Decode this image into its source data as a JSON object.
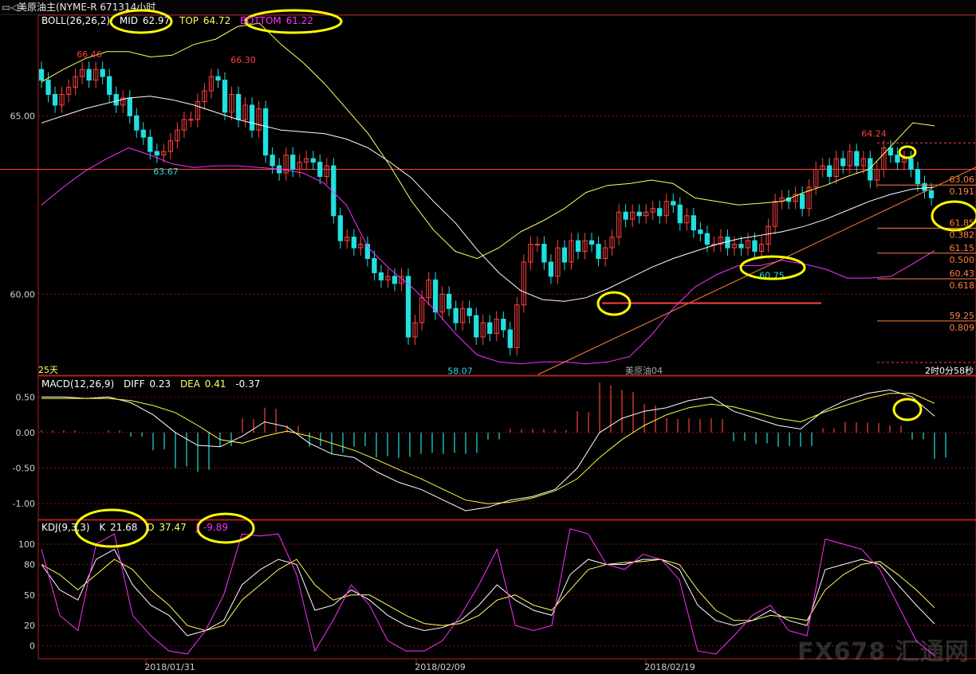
{
  "window": {
    "button": "▭◁",
    "title": "美原油主(NYME-R 671314小时"
  },
  "colors": {
    "up": "#ff4040",
    "down": "#20e0e0",
    "mid": "#ffffff",
    "top": "#ffff60",
    "bottom": "#ff30ff",
    "grid": "#8a1010",
    "panel_border": "#b02020",
    "trend": "#ff8040",
    "diff": "#ffffff",
    "dea": "#ffff40",
    "k": "#ffffff",
    "d": "#ffff60",
    "j": "#ff30ff",
    "circle": "#ffff00"
  },
  "boll": {
    "name": "BOLL(26,26,2)",
    "mid_label": "MID",
    "mid": "62.97",
    "top_label": "TOP",
    "top": "64.72",
    "bottom_label": "BOTTOM",
    "bottom": "61.22"
  },
  "macd": {
    "name": "MACD(12,26,9)",
    "diff_label": "DIFF",
    "diff": "0.23",
    "dea_label": "DEA",
    "dea": "0.41",
    "macd": "-0.37"
  },
  "kdj": {
    "name": "KDJ(9,3,3)",
    "k_label": "K",
    "k": "21.68",
    "d_label": "D",
    "d": "37.47",
    "j_label": "J",
    "j": "-9.89"
  },
  "main_annotations": {
    "period": "25天",
    "contract": "美原油04",
    "countdown": "2时0分58秒"
  },
  "price_marks": [
    "66.46",
    "66.30",
    "63.67",
    "58.07",
    "60.75",
    "64.24"
  ],
  "fib_levels": [
    {
      "price": "63.06",
      "ratio": "0.191"
    },
    {
      "price": "61.85",
      "ratio": "0.382"
    },
    {
      "price": "61.15",
      "ratio": "0.500"
    },
    {
      "price": "60.43",
      "ratio": "0.618"
    },
    {
      "price": "59.25",
      "ratio": "0.809"
    }
  ],
  "watermark": "FX678 汇通网",
  "chart_data": [
    {
      "type": "candlestick",
      "title": "美原油主(NYME-R 671314小时",
      "x_ticks": [
        "2018/01/31",
        "2018/02/09",
        "2018/02/19"
      ],
      "y_ticks": [
        65.0,
        60.0
      ],
      "ylim": [
        57.75,
        67.8
      ],
      "grid": true,
      "horizontal_line": 63.5,
      "support_line": 59.75,
      "close": [
        66.0,
        65.6,
        65.3,
        65.6,
        65.8,
        66.1,
        66.3,
        66.0,
        66.3,
        66.1,
        65.6,
        65.3,
        65.5,
        65.0,
        64.6,
        64.4,
        64.0,
        63.9,
        64.0,
        64.3,
        64.6,
        64.9,
        64.9,
        65.4,
        65.7,
        66.1,
        66.0,
        65.1,
        65.6,
        64.9,
        65.3,
        64.6,
        65.2,
        63.9,
        63.6,
        63.4,
        63.9,
        63.5,
        63.7,
        63.8,
        63.7,
        63.3,
        63.6,
        62.2,
        61.5,
        61.6,
        61.3,
        61.4,
        61.0,
        60.6,
        60.4,
        60.5,
        60.3,
        60.5,
        58.8,
        59.2,
        59.9,
        60.4,
        59.5,
        60.0,
        59.6,
        59.2,
        59.6,
        59.4,
        58.8,
        59.2,
        58.9,
        59.3,
        59.0,
        58.5,
        59.7,
        60.9,
        61.4,
        61.4,
        60.9,
        60.5,
        61.3,
        60.9,
        61.5,
        61.2,
        61.5,
        61.4,
        61.0,
        61.3,
        61.6,
        62.3,
        62.1,
        62.3,
        62.2,
        62.3,
        62.4,
        62.2,
        62.6,
        62.5,
        62.0,
        62.2,
        61.8,
        61.7,
        61.4,
        61.4,
        61.6,
        61.3,
        61.4,
        61.3,
        61.5,
        61.2,
        61.4,
        61.9,
        62.6,
        62.7,
        62.6,
        62.8,
        62.4,
        63.0,
        63.5,
        63.6,
        63.3,
        63.8,
        63.6,
        64.0,
        63.6,
        63.8,
        63.2,
        63.5,
        64.1,
        63.9,
        63.7,
        63.8,
        63.5,
        63.1,
        62.9,
        62.7
      ],
      "series": [
        {
          "name": "MID",
          "values": [
            64.8,
            65.0,
            65.2,
            65.35,
            65.5,
            65.55,
            65.45,
            65.3,
            65.1,
            64.9,
            64.75,
            64.6,
            64.55,
            64.5,
            64.35,
            64.1,
            63.7,
            63.25,
            62.6,
            62.0,
            61.25,
            60.6,
            60.1,
            59.85,
            59.8,
            59.9,
            60.15,
            60.45,
            60.75,
            61.0,
            61.2,
            61.4,
            61.55,
            61.65,
            61.75,
            61.9,
            62.1,
            62.35,
            62.6,
            62.8,
            62.95,
            63.0
          ]
        },
        {
          "name": "TOP",
          "values": [
            65.95,
            66.3,
            66.6,
            66.8,
            66.8,
            66.65,
            66.7,
            67.0,
            67.15,
            67.5,
            67.6,
            67.0,
            66.5,
            65.9,
            65.2,
            64.5,
            63.6,
            62.6,
            61.8,
            61.2,
            61.0,
            61.3,
            61.75,
            62.05,
            62.4,
            62.85,
            63.05,
            63.1,
            63.2,
            63.1,
            62.7,
            62.6,
            62.5,
            62.55,
            62.6,
            62.85,
            63.05,
            63.3,
            63.5,
            64.15,
            64.8,
            64.72
          ]
        },
        {
          "name": "BOTTOM",
          "values": [
            62.5,
            63.0,
            63.45,
            63.8,
            64.1,
            63.9,
            63.65,
            63.55,
            63.6,
            63.6,
            63.55,
            63.5,
            63.4,
            63.1,
            62.5,
            61.3,
            60.7,
            60.2,
            59.6,
            58.9,
            58.3,
            58.1,
            58.05,
            58.1,
            58.1,
            58.05,
            58.1,
            58.25,
            58.85,
            59.6,
            60.2,
            60.55,
            60.8,
            60.8,
            60.95,
            60.85,
            60.7,
            60.45,
            60.45,
            60.5,
            60.85,
            61.22
          ]
        }
      ]
    },
    {
      "type": "line",
      "title": "MACD(12,26,9)",
      "y_ticks": [
        0.5,
        0.0,
        -0.5,
        -1.0
      ],
      "ylim": [
        -1.2,
        0.75
      ],
      "series": [
        {
          "name": "DIFF",
          "values": [
            0.5,
            0.5,
            0.48,
            0.5,
            0.42,
            0.25,
            0.0,
            -0.18,
            -0.2,
            -0.05,
            0.15,
            0.08,
            -0.15,
            -0.3,
            -0.35,
            -0.55,
            -0.7,
            -0.8,
            -0.95,
            -1.1,
            -1.05,
            -0.95,
            -0.9,
            -0.8,
            -0.5,
            0.0,
            0.2,
            0.3,
            0.35,
            0.45,
            0.5,
            0.3,
            0.2,
            0.1,
            0.05,
            0.3,
            0.45,
            0.55,
            0.6,
            0.5,
            0.23
          ]
        },
        {
          "name": "DEA",
          "values": [
            0.48,
            0.48,
            0.48,
            0.48,
            0.45,
            0.38,
            0.28,
            0.1,
            -0.1,
            -0.15,
            -0.05,
            0.02,
            -0.05,
            -0.15,
            -0.25,
            -0.38,
            -0.52,
            -0.65,
            -0.8,
            -0.95,
            -1.0,
            -0.98,
            -0.92,
            -0.82,
            -0.65,
            -0.35,
            -0.1,
            0.1,
            0.25,
            0.35,
            0.4,
            0.36,
            0.28,
            0.2,
            0.15,
            0.28,
            0.38,
            0.48,
            0.55,
            0.55,
            0.41
          ]
        }
      ],
      "histogram": [
        0.03,
        0.03,
        0.0,
        0.03,
        -0.06,
        -0.25,
        -0.5,
        -0.55,
        -0.2,
        0.2,
        0.35,
        0.1,
        -0.2,
        -0.3,
        -0.2,
        -0.35,
        -0.36,
        -0.3,
        -0.3,
        -0.3,
        -0.1,
        0.05,
        0.05,
        0.04,
        0.3,
        0.7,
        0.6,
        0.4,
        0.2,
        0.2,
        0.2,
        -0.12,
        -0.16,
        -0.2,
        -0.2,
        0.06,
        0.15,
        0.14,
        0.1,
        -0.1,
        -0.37
      ]
    },
    {
      "type": "line",
      "title": "KDJ(9,3,3)",
      "y_ticks": [
        100,
        80,
        50,
        20,
        0
      ],
      "ylim": [
        -12,
        118
      ],
      "series": [
        {
          "name": "K",
          "values": [
            80,
            55,
            45,
            85,
            95,
            60,
            40,
            30,
            10,
            15,
            25,
            60,
            75,
            85,
            80,
            35,
            40,
            55,
            45,
            30,
            20,
            15,
            18,
            25,
            40,
            60,
            45,
            35,
            30,
            70,
            85,
            80,
            80,
            85,
            85,
            75,
            40,
            25,
            20,
            25,
            35,
            25,
            20,
            75,
            80,
            85,
            80,
            60,
            40,
            21.68
          ]
        },
        {
          "name": "D",
          "values": [
            80,
            70,
            55,
            70,
            85,
            75,
            55,
            40,
            20,
            15,
            20,
            45,
            60,
            75,
            85,
            60,
            45,
            50,
            50,
            40,
            30,
            22,
            20,
            22,
            30,
            45,
            50,
            40,
            35,
            55,
            75,
            80,
            82,
            83,
            85,
            80,
            55,
            35,
            25,
            25,
            30,
            28,
            25,
            55,
            70,
            80,
            83,
            70,
            55,
            37.47
          ]
        },
        {
          "name": "J",
          "values": [
            95,
            30,
            15,
            100,
            110,
            30,
            10,
            -5,
            -8,
            15,
            50,
            110,
            108,
            110,
            70,
            -5,
            25,
            60,
            40,
            5,
            -5,
            -5,
            5,
            30,
            60,
            95,
            20,
            15,
            20,
            115,
            110,
            80,
            75,
            90,
            85,
            65,
            -5,
            -8,
            10,
            30,
            40,
            15,
            10,
            105,
            100,
            95,
            75,
            40,
            5,
            -9.89
          ]
        }
      ]
    }
  ]
}
